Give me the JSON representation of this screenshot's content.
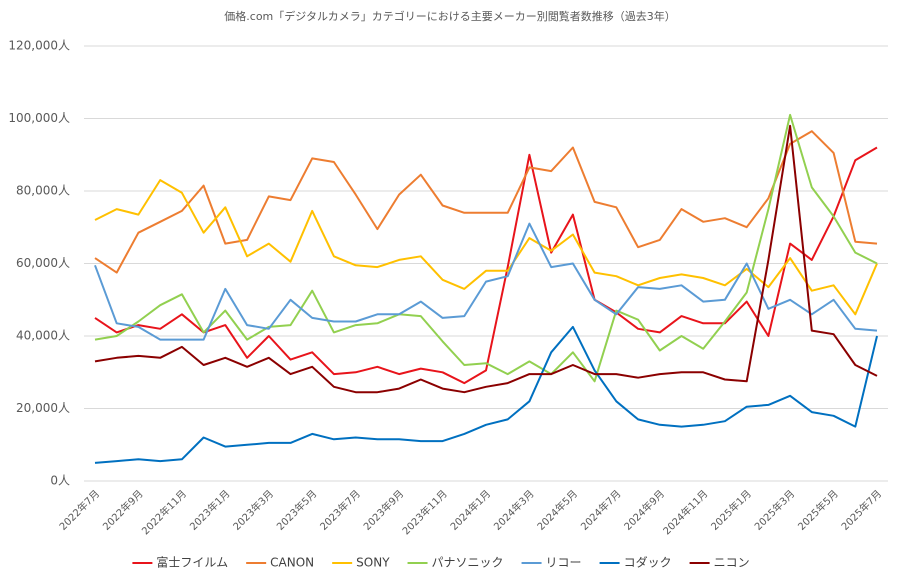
{
  "chart_data": {
    "type": "line",
    "title": "価格.com「デジタルカメラ」カテゴリーにおける主要メーカー別閲覧者数推移（過去3年）",
    "categories": [
      "2022年7月",
      null,
      "2022年9月",
      null,
      "2022年11月",
      null,
      "2023年1月",
      null,
      "2023年3月",
      null,
      "2023年5月",
      null,
      "2023年7月",
      null,
      "2023年9月",
      null,
      "2023年11月",
      null,
      "2024年1月",
      null,
      "2024年3月",
      null,
      "2024年5月",
      null,
      "2024年7月",
      null,
      "2024年9月",
      null,
      "2024年11月",
      null,
      "2025年1月",
      null,
      "2025年3月",
      null,
      "2025年5月",
      null,
      "2025年7月"
    ],
    "ylim": [
      0,
      120000
    ],
    "yticks": [
      {
        "value": 0,
        "label": "0人"
      },
      {
        "value": 20000,
        "label": "20,000人"
      },
      {
        "value": 40000,
        "label": "40,000人"
      },
      {
        "value": 60000,
        "label": "60,000人"
      },
      {
        "value": 80000,
        "label": "80,000人"
      },
      {
        "value": 100000,
        "label": "100,000人"
      },
      {
        "value": 120000,
        "label": "120,000人"
      }
    ],
    "grid": true,
    "legend": "bottom",
    "series": [
      {
        "name": "富士フイルム",
        "color": "#e8141b",
        "values": [
          45000,
          41000,
          43000,
          42000,
          46000,
          41000,
          43000,
          34000,
          40000,
          33500,
          35500,
          29500,
          30000,
          31500,
          29500,
          31000,
          30000,
          27000,
          30500,
          59000,
          90000,
          63000,
          73500,
          50000,
          46500,
          42000,
          41000,
          45500,
          43500,
          43500,
          49500,
          40000,
          65500,
          61000,
          73000,
          88500,
          92000
        ]
      },
      {
        "name": "CANON",
        "color": "#ed7d31",
        "values": [
          61500,
          57500,
          68500,
          71500,
          74500,
          81500,
          65500,
          66500,
          78500,
          77500,
          89000,
          88000,
          79000,
          69500,
          79000,
          84500,
          76000,
          74000,
          74000,
          74000,
          86500,
          85500,
          92000,
          77000,
          75500,
          64500,
          66500,
          75000,
          71500,
          72500,
          70000,
          78000,
          93000,
          96500,
          90500,
          66000,
          65500
        ]
      },
      {
        "name": "SONY",
        "color": "#ffc000",
        "values": [
          72000,
          75000,
          73500,
          83000,
          79500,
          68500,
          75500,
          62000,
          65500,
          60500,
          74500,
          62000,
          59500,
          59000,
          61000,
          62000,
          55500,
          53000,
          58000,
          58000,
          67000,
          63500,
          68000,
          57500,
          56500,
          54000,
          56000,
          57000,
          56000,
          54000,
          58500,
          53500,
          61500,
          52500,
          54000,
          46000,
          60000
        ]
      },
      {
        "name": "パナソニック",
        "color": "#92d050",
        "values": [
          39000,
          40000,
          44000,
          48500,
          51500,
          41000,
          47000,
          39000,
          42500,
          43000,
          52500,
          41000,
          43000,
          43500,
          46000,
          45500,
          38500,
          32000,
          32500,
          29500,
          33000,
          29500,
          35500,
          27500,
          47000,
          44500,
          36000,
          40000,
          36500,
          44000,
          52000,
          75000,
          101000,
          81000,
          73000,
          63000,
          60000
        ]
      },
      {
        "name": "リコー",
        "color": "#5b9bd5",
        "values": [
          59500,
          43500,
          42500,
          39000,
          39000,
          39000,
          53000,
          43000,
          42000,
          50000,
          45000,
          44000,
          44000,
          46000,
          46000,
          49500,
          45000,
          45500,
          55000,
          56500,
          71000,
          59000,
          60000,
          50000,
          46000,
          53500,
          53000,
          54000,
          49500,
          50000,
          60000,
          47500,
          50000,
          46000,
          50000,
          42000,
          41500
        ]
      },
      {
        "name": "コダック",
        "color": "#0070c0",
        "values": [
          5000,
          5500,
          6000,
          5500,
          6000,
          12000,
          9500,
          10000,
          10500,
          10500,
          13000,
          11500,
          12000,
          11500,
          11500,
          11000,
          11000,
          13000,
          15500,
          17000,
          22000,
          35500,
          42500,
          30500,
          22000,
          17000,
          15500,
          15000,
          15500,
          16500,
          20500,
          21000,
          23500,
          19000,
          18000,
          15000,
          40000
        ]
      },
      {
        "name": "ニコン",
        "color": "#8b0000",
        "values": [
          33000,
          34000,
          34500,
          34000,
          37000,
          32000,
          34000,
          31500,
          34000,
          29500,
          31500,
          26000,
          24500,
          24500,
          25500,
          28000,
          25500,
          24500,
          26000,
          27000,
          29500,
          29500,
          32000,
          29500,
          29500,
          28500,
          29500,
          30000,
          30000,
          28000,
          27500,
          61000,
          98000,
          41500,
          40500,
          32000,
          29000
        ]
      }
    ]
  }
}
